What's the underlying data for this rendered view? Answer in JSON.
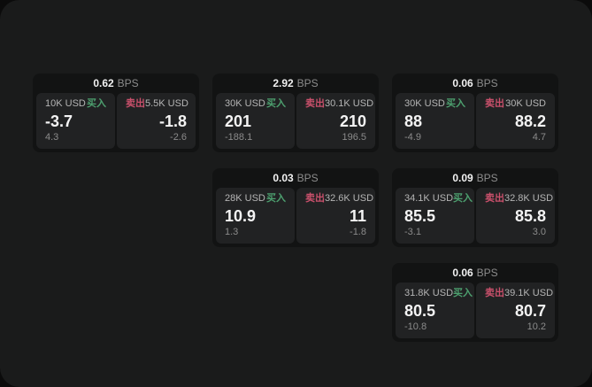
{
  "theme": {
    "page_bg": "#0b0b0b",
    "panel_bg": "#1a1b1b",
    "card_bg": "#121313",
    "tile_bg": "#212223",
    "buy_color": "#4da06f",
    "sell_color": "#c9506b",
    "price_color": "#f4f4f4",
    "muted_color": "#8b8b8b"
  },
  "labels": {
    "bps_unit": "BPS",
    "buy": "买入",
    "sell": "卖出"
  },
  "cards": [
    {
      "col": 0,
      "row": 0,
      "bps": "0.62",
      "buy": {
        "notional": "10K USD",
        "price": "-3.7",
        "delta": "4.3"
      },
      "sell": {
        "notional": "5.5K USD",
        "price": "-1.8",
        "delta": "-2.6"
      }
    },
    {
      "col": 1,
      "row": 0,
      "bps": "2.92",
      "buy": {
        "notional": "30K USD",
        "price": "201",
        "delta": "-188.1"
      },
      "sell": {
        "notional": "30.1K USD",
        "price": "210",
        "delta": "196.5"
      }
    },
    {
      "col": 2,
      "row": 0,
      "bps": "0.06",
      "buy": {
        "notional": "30K USD",
        "price": "88",
        "delta": "-4.9"
      },
      "sell": {
        "notional": "30K USD",
        "price": "88.2",
        "delta": "4.7"
      }
    },
    {
      "col": 1,
      "row": 1,
      "bps": "0.03",
      "buy": {
        "notional": "28K USD",
        "price": "10.9",
        "delta": "1.3"
      },
      "sell": {
        "notional": "32.6K USD",
        "price": "11",
        "delta": "-1.8"
      }
    },
    {
      "col": 2,
      "row": 1,
      "bps": "0.09",
      "buy": {
        "notional": "34.1K USD",
        "price": "85.5",
        "delta": "-3.1"
      },
      "sell": {
        "notional": "32.8K USD",
        "price": "85.8",
        "delta": "3.0"
      }
    },
    {
      "col": 2,
      "row": 2,
      "bps": "0.06",
      "buy": {
        "notional": "31.8K USD",
        "price": "80.5",
        "delta": "-10.8"
      },
      "sell": {
        "notional": "39.1K USD",
        "price": "80.7",
        "delta": "10.2"
      }
    }
  ]
}
